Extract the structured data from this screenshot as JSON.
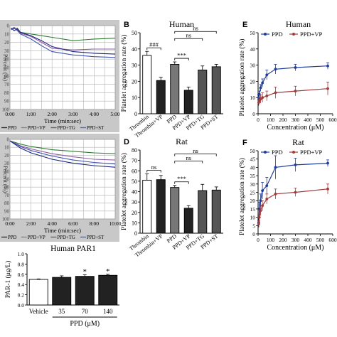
{
  "panels": [
    {
      "id": "A",
      "type": "line",
      "letter": "",
      "title": "",
      "ylabel": "Percent (%)",
      "xlabel": "Time (min:sec)",
      "xticks": [
        "0:00",
        "1:00",
        "2:00",
        "3:00",
        "4:00",
        "5:00"
      ],
      "yticks": [
        "0",
        "10",
        "20",
        "30",
        "40",
        "50",
        "60",
        "70",
        "80",
        "90",
        "100"
      ],
      "xlim": [
        0,
        5
      ],
      "ylim": [
        0,
        100
      ],
      "legend": [
        "PPD",
        "PPD+VP",
        "PPD+TG",
        "PPD+ST"
      ],
      "series": [
        {
          "color": "#2e7d32",
          "x": [
            0.05,
            0.2,
            0.35,
            0.5,
            1,
            1.5,
            2,
            3,
            4,
            5
          ],
          "y": [
            3,
            4,
            3,
            8,
            10,
            12,
            14,
            18,
            16,
            15
          ]
        },
        {
          "color": "#8e5ea2",
          "x": [
            0.05,
            0.2,
            0.35,
            0.5,
            1,
            1.5,
            2,
            3,
            4,
            5
          ],
          "y": [
            4,
            2,
            5,
            9,
            13,
            20,
            27,
            29,
            28,
            28
          ]
        },
        {
          "color": "#1a237e",
          "x": [
            0.05,
            0.2,
            0.35,
            0.5,
            1,
            1.5,
            2,
            3,
            4,
            5
          ],
          "y": [
            3,
            6,
            4,
            8,
            12,
            18,
            25,
            31,
            33,
            34
          ]
        },
        {
          "color": "#3f51b5",
          "x": [
            0.05,
            0.2,
            0.35,
            0.5,
            1,
            1.5,
            2,
            3,
            4,
            5
          ],
          "y": [
            5,
            3,
            6,
            10,
            16,
            24,
            31,
            35,
            37,
            38
          ]
        }
      ]
    },
    {
      "id": "C",
      "type": "line",
      "letter": "",
      "title": "",
      "ylabel": "Percent (%)",
      "xlabel": "Time (min:sec)",
      "xticks": [
        "0:00",
        "2:00",
        "4:00",
        "6:00",
        "8:00",
        "10:00"
      ],
      "yticks": [
        "0",
        "10",
        "20",
        "30",
        "40",
        "50",
        "60",
        "70",
        "80",
        "90",
        "100"
      ],
      "xlim": [
        0,
        10
      ],
      "ylim": [
        0,
        100
      ],
      "legend": [
        "PPD",
        "PPD+VP",
        "PPD+TG",
        "PPD+ST"
      ],
      "series": [
        {
          "color": "#2e7d32",
          "x": [
            0,
            1,
            2,
            4,
            6,
            8,
            10
          ],
          "y": [
            2,
            6,
            9,
            13,
            15,
            17,
            18
          ]
        },
        {
          "color": "#8e5ea2",
          "x": [
            0,
            1,
            2,
            4,
            6,
            8,
            10
          ],
          "y": [
            2,
            8,
            12,
            18,
            22,
            25,
            26
          ]
        },
        {
          "color": "#3f51b5",
          "x": [
            0,
            1,
            2,
            4,
            6,
            8,
            10
          ],
          "y": [
            2,
            9,
            14,
            21,
            26,
            29,
            31
          ]
        },
        {
          "color": "#1a237e",
          "x": [
            0,
            1,
            2,
            4,
            6,
            8,
            10
          ],
          "y": [
            2,
            11,
            17,
            25,
            30,
            33,
            35
          ]
        }
      ]
    },
    {
      "id": "B",
      "type": "bar",
      "letter": "B",
      "title": "Human",
      "ylabel": "Platelet aggregation rate (%)",
      "ylim": [
        0,
        50
      ],
      "yticks": [
        "0",
        "10",
        "20",
        "30",
        "40",
        "50"
      ],
      "categories": [
        "Thrombin",
        "Thrombin+VP",
        "PPD",
        "PPD+VP",
        "PPD+TG",
        "PPD+ST"
      ],
      "values": [
        36,
        20.5,
        30.5,
        14.5,
        27,
        29
      ],
      "errors": [
        2.5,
        2,
        1.5,
        2,
        2.5,
        1.5
      ],
      "fills": [
        "#ffffff",
        "#222222",
        "#777777",
        "#222222",
        "#555555",
        "#555555"
      ],
      "brackets": [
        {
          "from": 0,
          "to": 1,
          "label": "###",
          "level": 0
        },
        {
          "from": 2,
          "to": 3,
          "label": "***",
          "level": 0
        },
        {
          "from": 2,
          "to": 4,
          "label": "ns",
          "level": 1
        },
        {
          "from": 2,
          "to": 5,
          "label": "ns",
          "level": 2
        }
      ]
    },
    {
      "id": "D",
      "type": "bar",
      "letter": "D",
      "title": "Rat",
      "ylabel": "Platelet aggregation rate (%)",
      "ylim": [
        0,
        80
      ],
      "yticks": [
        "0",
        "10",
        "20",
        "30",
        "40",
        "50",
        "60",
        "70",
        "80"
      ],
      "categories": [
        "Thrombin",
        "Thrombin+VP",
        "PPD",
        "PPD+VP",
        "PPD+TG",
        "PPD+ST"
      ],
      "values": [
        51,
        51.5,
        44,
        24,
        41,
        41.5
      ],
      "errors": [
        6,
        4,
        2,
        2.5,
        6,
        3
      ],
      "fills": [
        "#ffffff",
        "#222222",
        "#777777",
        "#222222",
        "#555555",
        "#555555"
      ],
      "brackets": [
        {
          "from": 0,
          "to": 1,
          "label": "ns",
          "level": 0
        },
        {
          "from": 2,
          "to": 3,
          "label": "***",
          "level": 0
        },
        {
          "from": 2,
          "to": 4,
          "label": "ns",
          "level": 1
        },
        {
          "from": 2,
          "to": 5,
          "label": "ns",
          "level": 2
        }
      ]
    },
    {
      "id": "E",
      "type": "line",
      "letter": "E",
      "title": "Human",
      "ylabel": "Platelet aggregation rate (%)",
      "xlabel": "Concentration (μM)",
      "xticks": [
        "0",
        "100",
        "200",
        "300",
        "400",
        "500",
        "600"
      ],
      "yticks": [
        "0",
        "10",
        "20",
        "30",
        "40",
        "50"
      ],
      "xlim": [
        0,
        600
      ],
      "ylim": [
        0,
        50
      ],
      "legend": [
        "PPD",
        "PPD+VP"
      ],
      "series": [
        {
          "color": "#1f3c99",
          "x": [
            5,
            10,
            20,
            35,
            70,
            140,
            300,
            560
          ],
          "y": [
            10,
            12,
            16,
            19,
            24,
            27.5,
            28.5,
            29.5
          ],
          "err": [
            2,
            2,
            2,
            2.5,
            3,
            3,
            2,
            2
          ]
        },
        {
          "color": "#a33a3a",
          "x": [
            5,
            10,
            20,
            35,
            70,
            140,
            300,
            560
          ],
          "y": [
            7,
            8,
            9,
            10,
            11,
            13,
            14,
            15.5
          ],
          "err": [
            2,
            2,
            2.5,
            3,
            3,
            3.5,
            3,
            4
          ]
        }
      ]
    },
    {
      "id": "F",
      "type": "line",
      "letter": "F",
      "title": "Rat",
      "ylabel": "Platelet aggregation rate (%)",
      "xlabel": "Concentration (μM)",
      "xticks": [
        "0",
        "100",
        "200",
        "300",
        "400",
        "500",
        "600"
      ],
      "yticks": [
        "0",
        "5",
        "10",
        "15",
        "20",
        "25",
        "30",
        "35",
        "40",
        "45",
        "50"
      ],
      "xlim": [
        0,
        600
      ],
      "ylim": [
        0,
        50
      ],
      "legend": [
        "PPD",
        "PPD+VP"
      ],
      "series": [
        {
          "color": "#1f3c99",
          "x": [
            5,
            10,
            20,
            35,
            70,
            140,
            300,
            560
          ],
          "y": [
            7,
            15,
            20,
            26,
            29,
            40,
            41.5,
            42.5
          ],
          "err": [
            3,
            4,
            4,
            5,
            5,
            7,
            4,
            2
          ]
        },
        {
          "color": "#a33a3a",
          "x": [
            5,
            10,
            20,
            35,
            70,
            140,
            300,
            560
          ],
          "y": [
            6,
            10,
            14,
            17,
            21,
            24,
            25,
            27
          ],
          "err": [
            2,
            3,
            3,
            3,
            3,
            3,
            2.5,
            3
          ]
        }
      ]
    },
    {
      "id": "G",
      "type": "bar",
      "letter": "",
      "title": "Human PAR1",
      "ylabel": "PAR-1 (μg/L)",
      "xlabel": "PPD (μM)",
      "ylim": [
        0,
        1.0
      ],
      "yticks": [
        "0.0",
        "0.2",
        "0.4",
        "0.6",
        "0.8",
        "1.0"
      ],
      "categories": [
        "Vehicle",
        "35",
        "70",
        "140"
      ],
      "values": [
        0.5,
        0.54,
        0.56,
        0.58
      ],
      "errors": [
        0.01,
        0.03,
        0.03,
        0.02
      ],
      "fills": [
        "#ffffff",
        "#222222",
        "#222222",
        "#222222"
      ],
      "stars": [
        "",
        "",
        "*",
        "*"
      ]
    }
  ]
}
